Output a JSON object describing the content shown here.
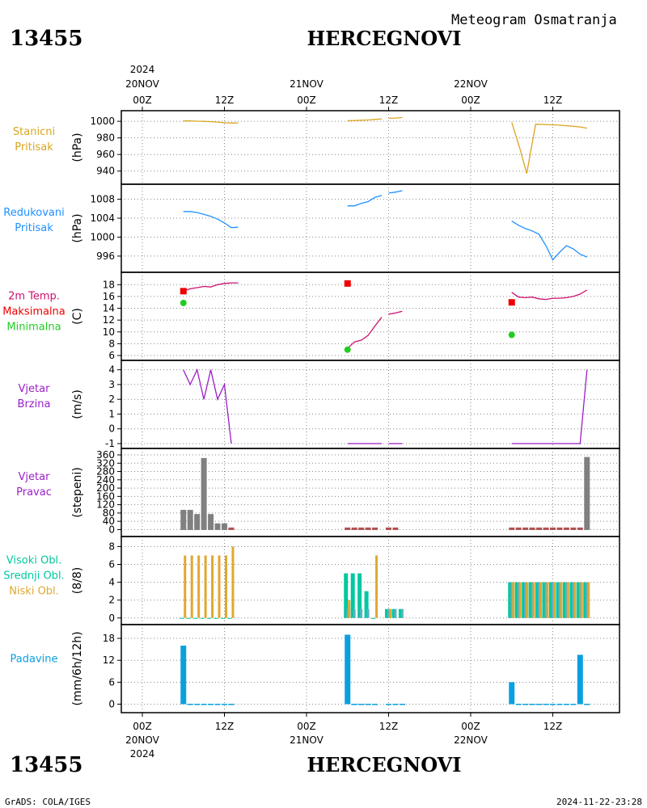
{
  "header": {
    "station_id": "13455",
    "station_name": "HERCEGNOVI",
    "meteogram_title": "Meteogram Osmatranja"
  },
  "footer": {
    "left": "GrADS: COLA/IGES",
    "right": "2024-11-22-23:28"
  },
  "colors": {
    "pressure_station": "#daa520",
    "pressure_reduced": "#1e90ff",
    "temp": "#cc1070",
    "tmax": "#ee0000",
    "tmin": "#22cc22",
    "wind": "#9b1fc8",
    "wind_dir": "#808080",
    "wind_dir_low": "#b05050",
    "cloud_high": "#00c8a0",
    "cloud_mid": "#5fb0c0",
    "cloud_low": "#e0a830",
    "precip": "#0aa0e0"
  },
  "time_axis": {
    "top_year": "2024",
    "bottom_year": "2024",
    "days": [
      {
        "date": "20NOV",
        "hour0": "00Z",
        "hour12": "12Z"
      },
      {
        "date": "21NOV",
        "hour0": "00Z",
        "hour12": "12Z"
      },
      {
        "date": "22NOV",
        "hour0": "00Z",
        "hour12": "12Z"
      }
    ]
  },
  "chart_data": [
    {
      "type": "line",
      "id": "station_pressure",
      "label": "Stanicni Pritisak",
      "label_lines": [
        "Stanicni",
        "Pritisak"
      ],
      "ylabel": "(hPa)",
      "ylim": [
        930,
        1005
      ],
      "yticks": [
        940,
        960,
        980,
        1000
      ],
      "series": [
        {
          "points": [
            [
              6,
              1000.4
            ],
            [
              7,
              1000.5
            ],
            [
              8,
              1000.1
            ],
            [
              9,
              999.9
            ],
            [
              10,
              999.5
            ],
            [
              11,
              999.1
            ],
            [
              12,
              998.3
            ],
            [
              13,
              997.9
            ],
            [
              14,
              998.1
            ]
          ]
        },
        {
          "points": [
            [
              30,
              1000.8
            ],
            [
              31,
              1000.9
            ],
            [
              32,
              1001.3
            ],
            [
              33,
              1001.6
            ],
            [
              34,
              1002.3
            ],
            [
              35,
              1003.0
            ]
          ]
        },
        {
          "points": [
            [
              36,
              1003.6
            ],
            [
              37,
              1003.9
            ],
            [
              38,
              1004.5
            ]
          ]
        },
        {
          "points": [
            [
              54,
              998.9
            ],
            [
              55.2,
              967
            ],
            [
              56.2,
              937
            ],
            [
              57.5,
              996.5
            ],
            [
              59,
              996.1
            ],
            [
              61,
              995.4
            ],
            [
              63,
              994.0
            ],
            [
              64,
              993.2
            ],
            [
              65,
              991.8
            ]
          ]
        }
      ]
    },
    {
      "type": "line",
      "id": "reduced_pressure",
      "label": "Redukovani Pritisak",
      "label_lines": [
        "Redukovani",
        "Pritisak"
      ],
      "ylabel": "(hPa)",
      "ylim": [
        993.6,
        1009.8
      ],
      "yticks": [
        996,
        1000,
        1004,
        1008
      ],
      "series": [
        {
          "points": [
            [
              6,
              1005.4
            ],
            [
              7,
              1005.4
            ],
            [
              8,
              1005.2
            ],
            [
              9,
              1004.8
            ],
            [
              10,
              1004.4
            ],
            [
              11,
              1003.8
            ],
            [
              12,
              1003.0
            ],
            [
              13,
              1002.0
            ],
            [
              14,
              1002.1
            ]
          ]
        },
        {
          "points": [
            [
              30,
              1006.6
            ],
            [
              31,
              1006.6
            ],
            [
              32,
              1007.1
            ],
            [
              33,
              1007.5
            ],
            [
              34,
              1008.4
            ],
            [
              35,
              1008.8
            ]
          ]
        },
        {
          "points": [
            [
              36,
              1009.3
            ],
            [
              37,
              1009.5
            ],
            [
              38,
              1009.8
            ]
          ]
        },
        {
          "points": [
            [
              54,
              1003.4
            ],
            [
              55,
              1002.5
            ],
            [
              56,
              1001.8
            ],
            [
              57,
              1001.3
            ],
            [
              58,
              1000.6
            ],
            [
              59,
              998.2
            ],
            [
              60,
              995.2
            ],
            [
              61,
              996.8
            ],
            [
              62,
              998.2
            ],
            [
              63,
              997.5
            ],
            [
              64,
              996.4
            ],
            [
              65,
              995.8
            ]
          ]
        }
      ]
    },
    {
      "type": "line",
      "id": "temperature",
      "label": "2m Temp. Maksimalna Minimalna",
      "label_lines": [
        "2m Temp.",
        "Maksimalna",
        "Minimalna"
      ],
      "ylabel": "(C)",
      "ylim": [
        6,
        19
      ],
      "yticks": [
        6,
        8,
        10,
        12,
        14,
        16,
        18
      ],
      "series": [
        {
          "points": [
            [
              6,
              16.9
            ],
            [
              7,
              17.3
            ],
            [
              8,
              17.5
            ],
            [
              9,
              17.7
            ],
            [
              10,
              17.6
            ],
            [
              11,
              18.0
            ],
            [
              12,
              18.2
            ],
            [
              13,
              18.3
            ],
            [
              14,
              18.3
            ]
          ]
        },
        {
          "points": [
            [
              30,
              7.2
            ],
            [
              31,
              8.3
            ],
            [
              32,
              8.6
            ],
            [
              33,
              9.4
            ],
            [
              34,
              11.0
            ],
            [
              35,
              12.5
            ]
          ]
        },
        {
          "points": [
            [
              36,
              13.0
            ],
            [
              37,
              13.2
            ],
            [
              38,
              13.5
            ]
          ]
        },
        {
          "points": [
            [
              54,
              16.7
            ],
            [
              55,
              15.9
            ],
            [
              56,
              15.8
            ],
            [
              57,
              15.9
            ],
            [
              58,
              15.6
            ],
            [
              59,
              15.5
            ],
            [
              60,
              15.7
            ],
            [
              61,
              15.7
            ],
            [
              62,
              15.8
            ],
            [
              63,
              16.0
            ],
            [
              64,
              16.4
            ],
            [
              65,
              17.1
            ]
          ]
        }
      ],
      "tmax": [
        [
          6,
          16.9
        ],
        [
          30,
          18.2
        ],
        [
          54,
          15.0
        ]
      ],
      "tmin": [
        [
          6,
          14.9
        ],
        [
          30,
          7.0
        ],
        [
          54,
          9.5
        ]
      ]
    },
    {
      "type": "line",
      "id": "wind_speed",
      "label": "Vjetar Brzina",
      "label_lines": [
        "Vjetar",
        "Brzina"
      ],
      "ylabel": "(m/s)",
      "ylim": [
        -1,
        4.2
      ],
      "yticks": [
        -1,
        0,
        1,
        2,
        3,
        4
      ],
      "series": [
        {
          "points": [
            [
              6,
              4
            ],
            [
              7,
              3
            ],
            [
              8,
              4
            ],
            [
              9,
              2
            ],
            [
              10,
              4
            ],
            [
              11,
              2
            ],
            [
              12,
              3
            ],
            [
              13,
              -1
            ]
          ]
        },
        {
          "points": [
            [
              30,
              -1
            ],
            [
              31,
              -1
            ],
            [
              32,
              -1
            ],
            [
              33,
              -1
            ],
            [
              34,
              -1
            ],
            [
              35,
              -1
            ]
          ]
        },
        {
          "points": [
            [
              36,
              -1
            ],
            [
              37,
              -1
            ],
            [
              38,
              -1
            ]
          ]
        },
        {
          "points": [
            [
              54,
              -1
            ],
            [
              56,
              -1
            ],
            [
              58,
              -1
            ],
            [
              60,
              -1
            ],
            [
              62,
              -1
            ],
            [
              64,
              -1
            ],
            [
              65,
              4
            ]
          ]
        }
      ]
    },
    {
      "type": "bar",
      "id": "wind_direction",
      "label": "Vjetar Pravac",
      "label_lines": [
        "Vjetar",
        "Pravac"
      ],
      "ylabel": "(stepeni)",
      "ylim": [
        -10,
        360
      ],
      "yticks": [
        0,
        40,
        80,
        120,
        160,
        200,
        240,
        280,
        320,
        360
      ],
      "bars": [
        [
          6,
          95
        ],
        [
          7,
          95
        ],
        [
          8,
          75
        ],
        [
          9,
          345
        ],
        [
          10,
          75
        ],
        [
          11,
          30
        ],
        [
          12,
          30
        ],
        [
          13,
          10
        ],
        [
          30,
          10
        ],
        [
          31,
          10
        ],
        [
          32,
          10
        ],
        [
          33,
          10
        ],
        [
          34,
          10
        ],
        [
          36,
          10
        ],
        [
          37,
          10
        ],
        [
          54,
          10
        ],
        [
          55,
          10
        ],
        [
          56,
          10
        ],
        [
          57,
          10
        ],
        [
          58,
          10
        ],
        [
          59,
          10
        ],
        [
          60,
          10
        ],
        [
          61,
          10
        ],
        [
          62,
          10
        ],
        [
          63,
          10
        ],
        [
          64,
          10
        ],
        [
          65,
          350
        ]
      ]
    },
    {
      "type": "bar",
      "id": "clouds",
      "label": "Visoki Obl. Srednji Obl. Niski Obl.",
      "label_lines": [
        "Visoki Obl.",
        "Srednji Obl.",
        "Niski Obl."
      ],
      "ylabel": "(8/8)",
      "ylim": [
        -0.2,
        8.4
      ],
      "yticks": [
        0,
        2,
        4,
        6,
        8
      ],
      "series": [
        {
          "name": "Visoki Obl.",
          "bars": [
            [
              6,
              0
            ],
            [
              7,
              0
            ],
            [
              8,
              0
            ],
            [
              9,
              0
            ],
            [
              10,
              0
            ],
            [
              11,
              0
            ],
            [
              12,
              0
            ],
            [
              13,
              0
            ],
            [
              30,
              5
            ],
            [
              31,
              5
            ],
            [
              32,
              5
            ],
            [
              33,
              3
            ],
            [
              34,
              0
            ],
            [
              36,
              1
            ],
            [
              37,
              1
            ],
            [
              38,
              1
            ],
            [
              54,
              4
            ],
            [
              55,
              4
            ],
            [
              56,
              4
            ],
            [
              57,
              4
            ],
            [
              58,
              4
            ],
            [
              59,
              4
            ],
            [
              60,
              4
            ],
            [
              61,
              4
            ],
            [
              62,
              4
            ],
            [
              63,
              4
            ],
            [
              64,
              4
            ],
            [
              65,
              4
            ]
          ]
        },
        {
          "name": "Srednji Obl.",
          "bars": [
            [
              30,
              1
            ],
            [
              31,
              1
            ],
            [
              32,
              1
            ],
            [
              33,
              1
            ],
            [
              36,
              1
            ],
            [
              37,
              1
            ],
            [
              38,
              1
            ],
            [
              54,
              4
            ],
            [
              55,
              4
            ],
            [
              56,
              4
            ],
            [
              57,
              4
            ],
            [
              58,
              4
            ],
            [
              59,
              4
            ],
            [
              60,
              4
            ],
            [
              61,
              4
            ],
            [
              62,
              4
            ],
            [
              63,
              4
            ],
            [
              64,
              4
            ],
            [
              65,
              4
            ]
          ]
        },
        {
          "name": "Niski Obl.",
          "bars": [
            [
              6,
              7
            ],
            [
              7,
              7
            ],
            [
              8,
              7
            ],
            [
              9,
              7
            ],
            [
              10,
              7
            ],
            [
              11,
              7
            ],
            [
              12,
              7
            ],
            [
              13,
              8
            ],
            [
              30,
              2
            ],
            [
              34,
              7
            ],
            [
              36,
              1
            ],
            [
              54,
              4
            ],
            [
              55,
              4
            ],
            [
              56,
              4
            ],
            [
              57,
              4
            ],
            [
              58,
              4
            ],
            [
              59,
              4
            ],
            [
              60,
              4
            ],
            [
              61,
              4
            ],
            [
              62,
              4
            ],
            [
              63,
              4
            ],
            [
              64,
              4
            ],
            [
              65,
              4
            ]
          ]
        }
      ]
    },
    {
      "type": "bar",
      "id": "precipitation",
      "label": "Padavine",
      "label_lines": [
        "Padavine"
      ],
      "ylabel": "(mm/6h/12h)",
      "ylim": [
        -1,
        20
      ],
      "yticks": [
        0,
        6,
        12,
        18
      ],
      "bars": [
        [
          6,
          16
        ],
        [
          7,
          0.1
        ],
        [
          8,
          0.1
        ],
        [
          9,
          0.1
        ],
        [
          10,
          0.1
        ],
        [
          11,
          0.1
        ],
        [
          12,
          0.1
        ],
        [
          13,
          0.1
        ],
        [
          30,
          19
        ],
        [
          31,
          0.1
        ],
        [
          32,
          0.1
        ],
        [
          33,
          0.1
        ],
        [
          34,
          0.1
        ],
        [
          36,
          0.1
        ],
        [
          37,
          0.1
        ],
        [
          38,
          0.1
        ],
        [
          54,
          6
        ],
        [
          55,
          0.1
        ],
        [
          56,
          0.1
        ],
        [
          57,
          0.1
        ],
        [
          58,
          0.1
        ],
        [
          59,
          0.1
        ],
        [
          60,
          0.1
        ],
        [
          61,
          0.1
        ],
        [
          62,
          0.1
        ],
        [
          63,
          0.1
        ],
        [
          64,
          13.5
        ],
        [
          65,
          0.1
        ]
      ]
    }
  ]
}
